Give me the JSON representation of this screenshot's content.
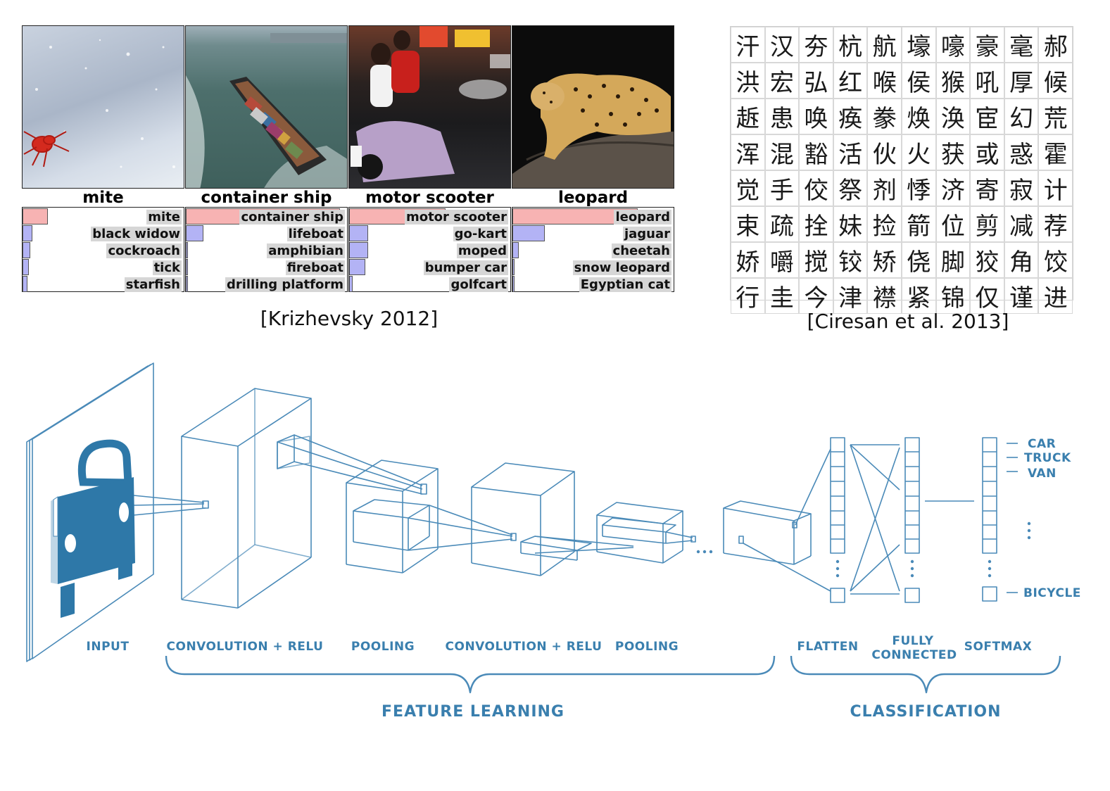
{
  "krizhevsky": {
    "caption": "[Krizhevsky 2012]",
    "columns": [
      {
        "title": "mite",
        "predictions": [
          {
            "label": "mite",
            "score": 0.16,
            "top": true
          },
          {
            "label": "black widow",
            "score": 0.06
          },
          {
            "label": "cockroach",
            "score": 0.05
          },
          {
            "label": "tick",
            "score": 0.04
          },
          {
            "label": "starfish",
            "score": 0.03
          }
        ]
      },
      {
        "title": "container ship",
        "predictions": [
          {
            "label": "container ship",
            "score": 0.96,
            "top": true
          },
          {
            "label": "lifeboat",
            "score": 0.11
          },
          {
            "label": "amphibian",
            "score": 0.01
          },
          {
            "label": "fireboat",
            "score": 0.01
          },
          {
            "label": "drilling platform",
            "score": 0.01
          }
        ]
      },
      {
        "title": "motor scooter",
        "predictions": [
          {
            "label": "motor scooter",
            "score": 0.6,
            "top": true
          },
          {
            "label": "go-kart",
            "score": 0.12
          },
          {
            "label": "moped",
            "score": 0.12
          },
          {
            "label": "bumper car",
            "score": 0.1
          },
          {
            "label": "golfcart",
            "score": 0.02
          }
        ]
      },
      {
        "title": "leopard",
        "predictions": [
          {
            "label": "leopard",
            "score": 0.78,
            "top": true
          },
          {
            "label": "jaguar",
            "score": 0.2
          },
          {
            "label": "cheetah",
            "score": 0.04
          },
          {
            "label": "snow leopard",
            "score": 0.01
          },
          {
            "label": "Egyptian cat",
            "score": 0.01
          }
        ]
      }
    ]
  },
  "ciresan": {
    "caption": "[Ciresan et al. 2013]",
    "characters": [
      "汗",
      "汉",
      "夯",
      "杭",
      "航",
      "壕",
      "嚎",
      "豪",
      "毫",
      "郝",
      "洪",
      "宏",
      "弘",
      "红",
      "喉",
      "侯",
      "猴",
      "吼",
      "厚",
      "候",
      "䞣",
      "患",
      "唤",
      "痪",
      "豢",
      "焕",
      "涣",
      "宦",
      "幻",
      "荒",
      "浑",
      "混",
      "豁",
      "活",
      "伙",
      "火",
      "获",
      "或",
      "惑",
      "霍",
      "觉",
      "手",
      "佼",
      "祭",
      "剂",
      "悸",
      "济",
      "寄",
      "寂",
      "计",
      "束",
      "疏",
      "拴",
      "妹",
      "捡",
      "箭",
      "位",
      "剪",
      "减",
      "荐",
      "娇",
      "嚼",
      "搅",
      "铰",
      "矫",
      "侥",
      "脚",
      "狡",
      "角",
      "饺",
      "行",
      "圭",
      "今",
      "津",
      "襟",
      "紧",
      "锦",
      "仅",
      "谨",
      "进"
    ]
  },
  "cnn": {
    "stage_labels": {
      "input": "INPUT",
      "conv1": "CONVOLUTION + RELU",
      "pool1": "POOLING",
      "conv2": "CONVOLUTION + RELU",
      "pool2": "POOLING",
      "flatten": "FLATTEN",
      "fc_line1": "FULLY",
      "fc_line2": "CONNECTED",
      "softmax": "SOFTMAX"
    },
    "groups": {
      "feature_learning": "FEATURE LEARNING",
      "classification": "CLASSIFICATION"
    },
    "classes": [
      "CAR",
      "TRUCK",
      "VAN",
      "BICYCLE"
    ],
    "colors": {
      "line": "#4a8ab8",
      "text": "#3a7fae",
      "car": "#2e78a8"
    }
  }
}
